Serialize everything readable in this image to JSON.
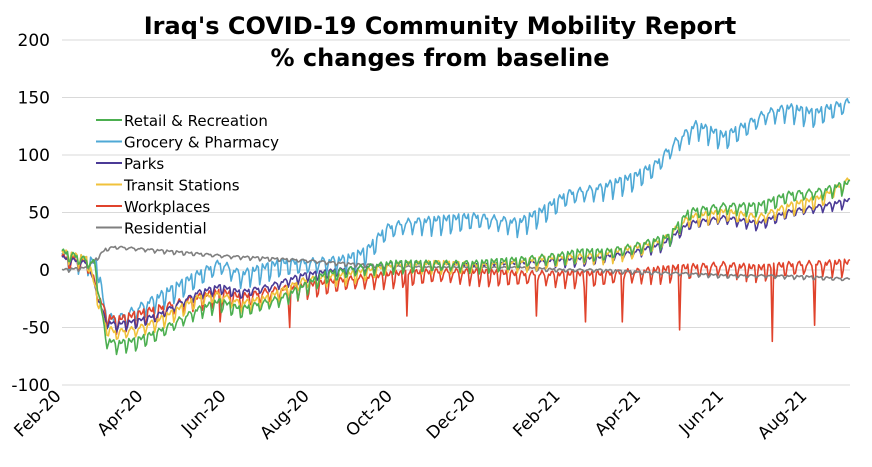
{
  "chart_data": {
    "type": "line",
    "title": "Iraq's COVID-19 Community Mobility Report",
    "subtitle": "% changes from baseline",
    "xlabel": "",
    "ylabel": "",
    "ylim": [
      -100,
      200
    ],
    "y_ticks": [
      -100,
      -50,
      0,
      50,
      100,
      150,
      200
    ],
    "x_ticks": [
      "Feb-20",
      "Apr-20",
      "Jun-20",
      "Aug-20",
      "Oct-20",
      "Dec-20",
      "Feb-21",
      "Apr-21",
      "Jun-21",
      "Aug-21"
    ],
    "x_tick_dates": [
      "2020-02-15",
      "2020-04-15",
      "2020-06-15",
      "2020-08-15",
      "2020-10-15",
      "2020-12-15",
      "2021-02-15",
      "2021-04-15",
      "2021-06-15",
      "2021-08-15"
    ],
    "x_range": [
      "2020-02-15",
      "2021-09-15"
    ],
    "grid": "horizontal",
    "legend_position": "top-left",
    "series": [
      {
        "name": "Retail & Recreation",
        "color": "#4caf50",
        "weekly_amplitude": 7,
        "points": [
          [
            "2020-02-15",
            15
          ],
          [
            "2020-02-28",
            10
          ],
          [
            "2020-03-10",
            5
          ],
          [
            "2020-03-18",
            -60
          ],
          [
            "2020-03-25",
            -65
          ],
          [
            "2020-04-10",
            -62
          ],
          [
            "2020-04-25",
            -55
          ],
          [
            "2020-05-10",
            -45
          ],
          [
            "2020-05-25",
            -35
          ],
          [
            "2020-06-10",
            -28
          ],
          [
            "2020-06-25",
            -35
          ],
          [
            "2020-07-10",
            -30
          ],
          [
            "2020-07-25",
            -25
          ],
          [
            "2020-08-10",
            -15
          ],
          [
            "2020-08-25",
            -5
          ],
          [
            "2020-09-15",
            0
          ],
          [
            "2020-10-15",
            5
          ],
          [
            "2020-11-15",
            5
          ],
          [
            "2020-12-15",
            5
          ],
          [
            "2021-01-15",
            8
          ],
          [
            "2021-02-15",
            12
          ],
          [
            "2021-03-01",
            15
          ],
          [
            "2021-03-20",
            15
          ],
          [
            "2021-04-10",
            20
          ],
          [
            "2021-05-05",
            28
          ],
          [
            "2021-05-20",
            50
          ],
          [
            "2021-06-15",
            55
          ],
          [
            "2021-07-10",
            55
          ],
          [
            "2021-08-01",
            65
          ],
          [
            "2021-08-25",
            68
          ],
          [
            "2021-09-15",
            75
          ]
        ]
      },
      {
        "name": "Grocery & Pharmacy",
        "color": "#4fa9d6",
        "weekly_amplitude": 10,
        "points": [
          [
            "2020-02-15",
            12
          ],
          [
            "2020-03-01",
            8
          ],
          [
            "2020-03-12",
            5
          ],
          [
            "2020-03-18",
            -40
          ],
          [
            "2020-03-25",
            -45
          ],
          [
            "2020-04-10",
            -35
          ],
          [
            "2020-04-25",
            -25
          ],
          [
            "2020-05-10",
            -15
          ],
          [
            "2020-05-25",
            -5
          ],
          [
            "2020-06-10",
            5
          ],
          [
            "2020-06-25",
            -5
          ],
          [
            "2020-07-10",
            0
          ],
          [
            "2020-07-25",
            5
          ],
          [
            "2020-08-10",
            5
          ],
          [
            "2020-09-10",
            8
          ],
          [
            "2020-09-25",
            15
          ],
          [
            "2020-10-10",
            35
          ],
          [
            "2020-10-25",
            40
          ],
          [
            "2020-11-15",
            42
          ],
          [
            "2020-12-15",
            45
          ],
          [
            "2021-01-15",
            40
          ],
          [
            "2021-02-01",
            50
          ],
          [
            "2021-02-20",
            65
          ],
          [
            "2021-03-15",
            70
          ],
          [
            "2021-04-10",
            80
          ],
          [
            "2021-04-25",
            90
          ],
          [
            "2021-05-10",
            110
          ],
          [
            "2021-05-25",
            125
          ],
          [
            "2021-06-15",
            115
          ],
          [
            "2021-07-01",
            125
          ],
          [
            "2021-07-15",
            135
          ],
          [
            "2021-08-01",
            140
          ],
          [
            "2021-08-20",
            135
          ],
          [
            "2021-09-01",
            140
          ],
          [
            "2021-09-15",
            145
          ]
        ]
      },
      {
        "name": "Parks",
        "color": "#4b3a96",
        "weekly_amplitude": 5,
        "points": [
          [
            "2020-02-15",
            10
          ],
          [
            "2020-03-05",
            5
          ],
          [
            "2020-03-18",
            -45
          ],
          [
            "2020-03-25",
            -48
          ],
          [
            "2020-04-10",
            -45
          ],
          [
            "2020-04-25",
            -40
          ],
          [
            "2020-05-10",
            -30
          ],
          [
            "2020-05-25",
            -20
          ],
          [
            "2020-06-10",
            -15
          ],
          [
            "2020-06-25",
            -20
          ],
          [
            "2020-07-15",
            -15
          ],
          [
            "2020-08-10",
            -5
          ],
          [
            "2020-09-10",
            0
          ],
          [
            "2020-10-15",
            5
          ],
          [
            "2020-11-15",
            5
          ],
          [
            "2020-12-15",
            3
          ],
          [
            "2021-01-15",
            5
          ],
          [
            "2021-02-15",
            8
          ],
          [
            "2021-03-15",
            10
          ],
          [
            "2021-04-10",
            15
          ],
          [
            "2021-05-01",
            22
          ],
          [
            "2021-05-20",
            40
          ],
          [
            "2021-06-15",
            45
          ],
          [
            "2021-07-10",
            40
          ],
          [
            "2021-08-01",
            50
          ],
          [
            "2021-08-25",
            55
          ],
          [
            "2021-09-15",
            60
          ]
        ]
      },
      {
        "name": "Transit Stations",
        "color": "#f0c23b",
        "weekly_amplitude": 7,
        "points": [
          [
            "2020-02-15",
            15
          ],
          [
            "2020-03-05",
            8
          ],
          [
            "2020-03-18",
            -50
          ],
          [
            "2020-03-25",
            -55
          ],
          [
            "2020-04-10",
            -52
          ],
          [
            "2020-04-25",
            -45
          ],
          [
            "2020-05-10",
            -35
          ],
          [
            "2020-05-25",
            -25
          ],
          [
            "2020-06-10",
            -22
          ],
          [
            "2020-06-25",
            -30
          ],
          [
            "2020-07-15",
            -25
          ],
          [
            "2020-08-10",
            -10
          ],
          [
            "2020-09-10",
            -5
          ],
          [
            "2020-10-15",
            3
          ],
          [
            "2020-11-15",
            5
          ],
          [
            "2020-12-15",
            3
          ],
          [
            "2021-01-15",
            6
          ],
          [
            "2021-02-15",
            10
          ],
          [
            "2021-03-15",
            12
          ],
          [
            "2021-04-10",
            18
          ],
          [
            "2021-05-01",
            25
          ],
          [
            "2021-05-20",
            45
          ],
          [
            "2021-06-15",
            50
          ],
          [
            "2021-07-10",
            45
          ],
          [
            "2021-08-01",
            55
          ],
          [
            "2021-08-25",
            62
          ],
          [
            "2021-09-15",
            78
          ]
        ]
      },
      {
        "name": "Workplaces",
        "color": "#e0432c",
        "weekly_amplitude": 9,
        "points": [
          [
            "2020-02-15",
            10
          ],
          [
            "2020-03-05",
            5
          ],
          [
            "2020-03-18",
            -40
          ],
          [
            "2020-03-25",
            -45
          ],
          [
            "2020-04-10",
            -40
          ],
          [
            "2020-04-25",
            -35
          ],
          [
            "2020-05-10",
            -30
          ],
          [
            "2020-05-25",
            -25
          ],
          [
            "2020-06-10",
            -20
          ],
          [
            "2020-06-25",
            -25
          ],
          [
            "2020-07-15",
            -20
          ],
          [
            "2020-08-10",
            -15
          ],
          [
            "2020-09-10",
            -10
          ],
          [
            "2020-10-15",
            -5
          ],
          [
            "2020-11-15",
            -3
          ],
          [
            "2020-12-15",
            -3
          ],
          [
            "2021-01-15",
            -5
          ],
          [
            "2021-02-15",
            -5
          ],
          [
            "2021-03-15",
            -5
          ],
          [
            "2021-04-10",
            -3
          ],
          [
            "2021-05-10",
            0
          ],
          [
            "2021-06-15",
            3
          ],
          [
            "2021-07-10",
            0
          ],
          [
            "2021-08-01",
            3
          ],
          [
            "2021-09-15",
            5
          ]
        ],
        "dips": [
          [
            "2020-04-25",
            -45
          ],
          [
            "2020-06-10",
            -45
          ],
          [
            "2020-07-31",
            -50
          ],
          [
            "2020-10-25",
            -40
          ],
          [
            "2021-01-28",
            -40
          ],
          [
            "2021-03-05",
            -45
          ],
          [
            "2021-04-01",
            -45
          ],
          [
            "2021-05-13",
            -52
          ],
          [
            "2021-07-20",
            -62
          ],
          [
            "2021-08-20",
            -48
          ]
        ]
      },
      {
        "name": "Residential",
        "color": "#7f7f7f",
        "weekly_amplitude": 2,
        "points": [
          [
            "2020-02-15",
            0
          ],
          [
            "2020-03-05",
            2
          ],
          [
            "2020-03-18",
            18
          ],
          [
            "2020-03-25",
            20
          ],
          [
            "2020-04-15",
            18
          ],
          [
            "2020-05-15",
            15
          ],
          [
            "2020-06-15",
            12
          ],
          [
            "2020-07-15",
            10
          ],
          [
            "2020-08-15",
            8
          ],
          [
            "2020-09-15",
            5
          ],
          [
            "2020-10-15",
            3
          ],
          [
            "2020-11-15",
            2
          ],
          [
            "2020-12-15",
            2
          ],
          [
            "2021-01-15",
            2
          ],
          [
            "2021-02-15",
            0
          ],
          [
            "2021-03-15",
            0
          ],
          [
            "2021-04-15",
            -2
          ],
          [
            "2021-05-15",
            -3
          ],
          [
            "2021-06-15",
            -5
          ],
          [
            "2021-07-15",
            -5
          ],
          [
            "2021-08-15",
            -6
          ],
          [
            "2021-09-15",
            -8
          ]
        ]
      }
    ]
  }
}
